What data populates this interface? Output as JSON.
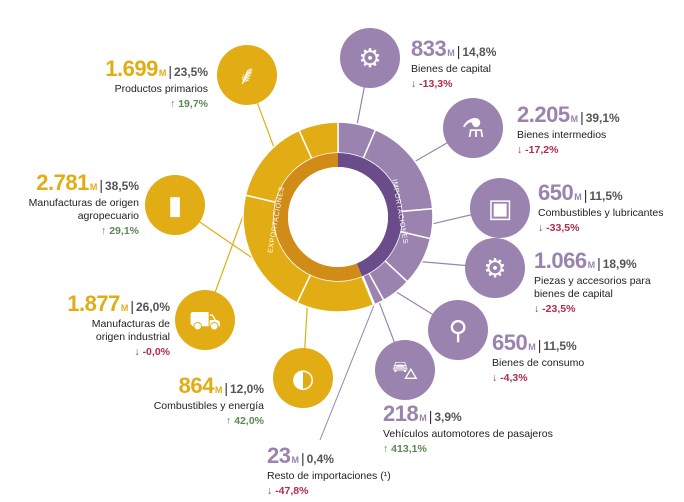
{
  "chart_data": {
    "type": "pie",
    "center_labels": {
      "exports": "EXPORTACIONES",
      "imports": "IMPORTACIONES"
    },
    "colors": {
      "exports": "#e2ad14",
      "exports_inner": "#d18b17",
      "imports": "#9a83ae",
      "imports_inner": "#6a4c8b",
      "up": "#5a8a52",
      "down": "#b12d4a"
    },
    "exports": [
      {
        "value": "1.699",
        "unit": "M",
        "share": "23,5%",
        "label": "Productos primarios",
        "change": "19,7%",
        "direction": "up",
        "icon": "wheat-icon"
      },
      {
        "value": "2.781",
        "unit": "M",
        "share": "38,5%",
        "label": "Manufacturas de origen agropecuario",
        "change": "29,1%",
        "direction": "up",
        "icon": "bottle-icon"
      },
      {
        "value": "1.877",
        "unit": "M",
        "share": "26,0%",
        "label": "Manufacturas de origen industrial",
        "change": "-0,0%",
        "direction": "down",
        "icon": "truck-icon"
      },
      {
        "value": "864",
        "unit": "M",
        "share": "12,0%",
        "label": "Combustibles y energía",
        "change": "42,0%",
        "direction": "up",
        "icon": "fuel-drop-icon"
      }
    ],
    "imports": [
      {
        "value": "833",
        "unit": "M",
        "share": "14,8%",
        "label": "Bienes de capital",
        "change": "-13,3%",
        "direction": "down",
        "icon": "tractor-icon"
      },
      {
        "value": "2.205",
        "unit": "M",
        "share": "39,1%",
        "label": "Bienes intermedios",
        "change": "-17,2%",
        "direction": "down",
        "icon": "flask-icon"
      },
      {
        "value": "650",
        "unit": "M",
        "share": "11,5%",
        "label": "Combustibles y lubricantes",
        "change": "-33,5%",
        "direction": "down",
        "icon": "jerrycan-icon"
      },
      {
        "value": "1.066",
        "unit": "M",
        "share": "18,9%",
        "label": "Piezas y accesorios para bienes de capital",
        "change": "-23,5%",
        "direction": "down",
        "icon": "gear-part-icon"
      },
      {
        "value": "650",
        "unit": "M",
        "share": "11,5%",
        "label": "Bienes de consumo",
        "change": "-4,3%",
        "direction": "down",
        "icon": "bicycle-icon"
      },
      {
        "value": "218",
        "unit": "M",
        "share": "3,9%",
        "label": "Vehículos automotores de pasajeros",
        "change": "413,1%",
        "direction": "up",
        "icon": "car-icon"
      },
      {
        "value": "23",
        "unit": "M",
        "share": "0,4%",
        "label": "Resto de importaciones (¹)",
        "change": "-47,8%",
        "direction": "down",
        "icon": ""
      }
    ]
  }
}
